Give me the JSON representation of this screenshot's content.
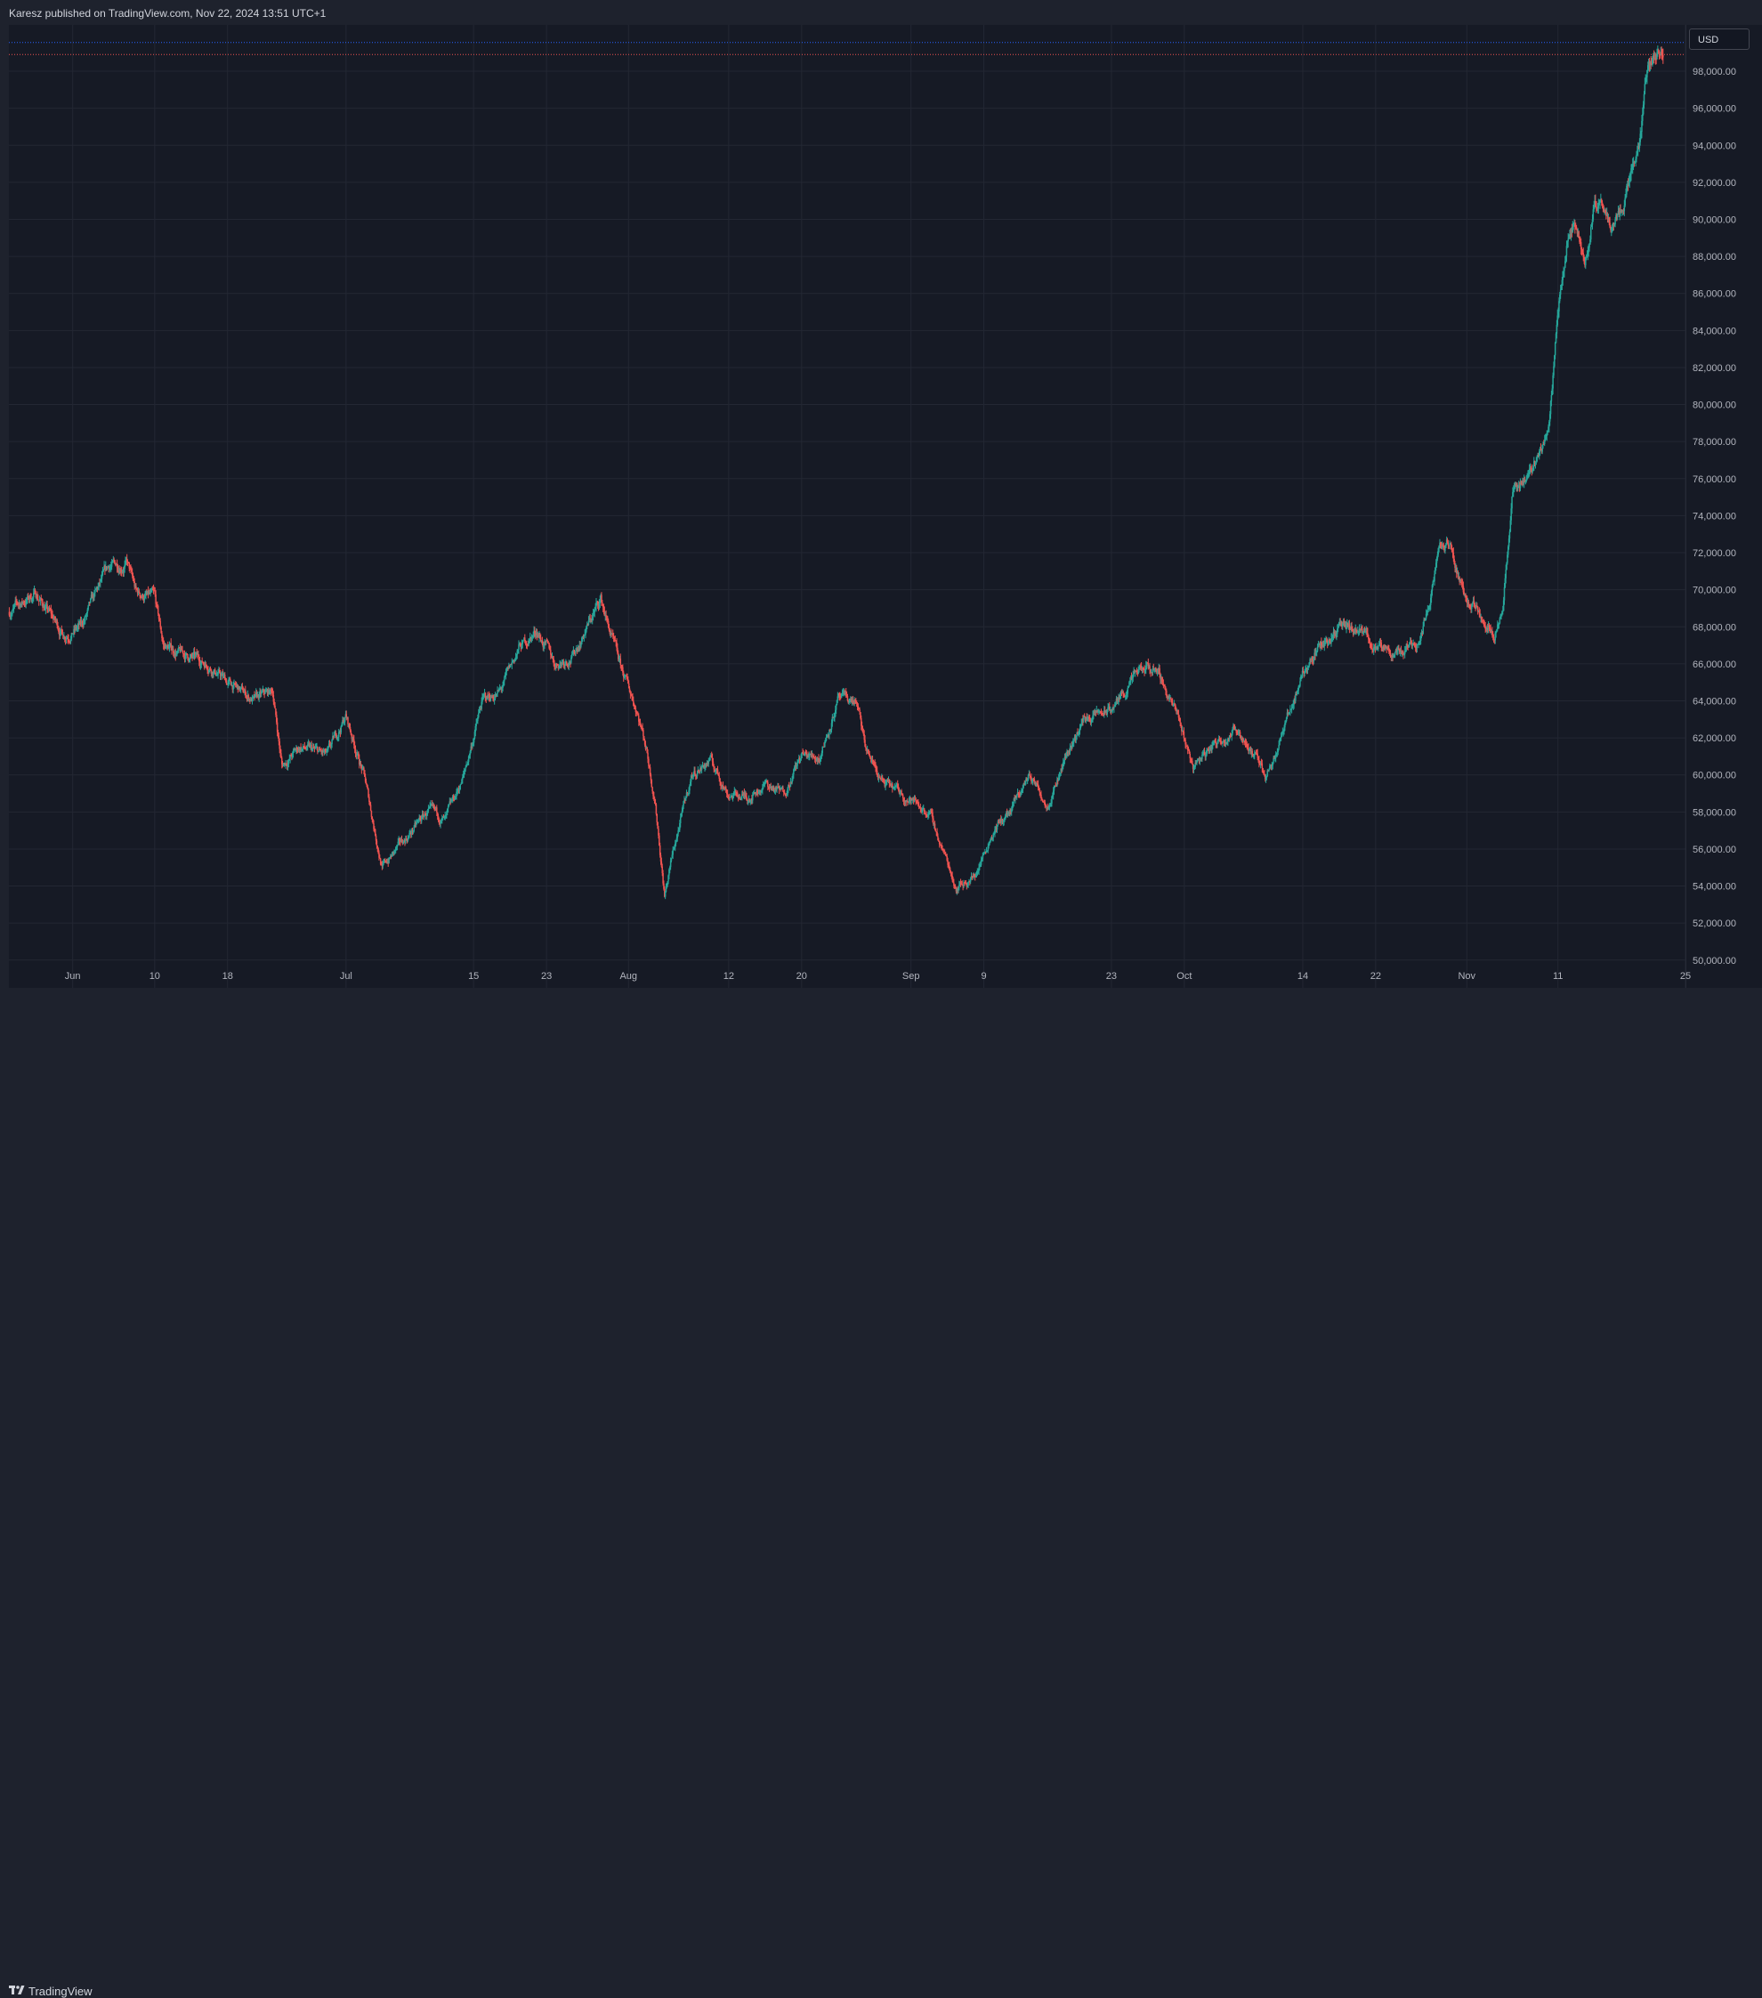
{
  "header": {
    "publisher_text": "Karesz published on TradingView.com, Nov 22, 2024 13:51 UTC+1"
  },
  "price_axis": {
    "currency_badge": "USD"
  },
  "footer": {
    "brand": "TradingView",
    "logo_icon": "tradingview-logo-icon"
  },
  "colors": {
    "background": "#161a25",
    "grid": "#232733",
    "up_candle": "#26a69a",
    "down_candle": "#ef5350",
    "marker_line_blue": "#2962ff",
    "marker_line_red": "#ef5350"
  },
  "chart_data": {
    "type": "candlestick",
    "title": "",
    "xlabel": "",
    "ylabel": "",
    "ylim": [
      48500,
      100500
    ],
    "grid": true,
    "y_ticks": [
      "50,000.00",
      "52,000.00",
      "54,000.00",
      "56,000.00",
      "58,000.00",
      "60,000.00",
      "62,000.00",
      "64,000.00",
      "66,000.00",
      "68,000.00",
      "70,000.00",
      "72,000.00",
      "74,000.00",
      "76,000.00",
      "78,000.00",
      "80,000.00",
      "82,000.00",
      "84,000.00",
      "86,000.00",
      "88,000.00",
      "90,000.00",
      "92,000.00",
      "94,000.00",
      "96,000.00",
      "98,000.00"
    ],
    "x_ticks": [
      {
        "label": "Jun",
        "date": "2024-06-01"
      },
      {
        "label": "10",
        "date": "2024-06-10"
      },
      {
        "label": "18",
        "date": "2024-06-18"
      },
      {
        "label": "Jul",
        "date": "2024-07-01"
      },
      {
        "label": "15",
        "date": "2024-07-15"
      },
      {
        "label": "23",
        "date": "2024-07-23"
      },
      {
        "label": "Aug",
        "date": "2024-08-01"
      },
      {
        "label": "12",
        "date": "2024-08-12"
      },
      {
        "label": "20",
        "date": "2024-08-20"
      },
      {
        "label": "Sep",
        "date": "2024-09-01"
      },
      {
        "label": "9",
        "date": "2024-09-09"
      },
      {
        "label": "23",
        "date": "2024-09-23"
      },
      {
        "label": "Oct",
        "date": "2024-10-01"
      },
      {
        "label": "14",
        "date": "2024-10-14"
      },
      {
        "label": "22",
        "date": "2024-10-22"
      },
      {
        "label": "Nov",
        "date": "2024-11-01"
      },
      {
        "label": "11",
        "date": "2024-11-11"
      },
      {
        "label": "25",
        "date": "2024-11-25"
      }
    ],
    "x_range": [
      "2024-05-25",
      "2024-11-25"
    ],
    "price_path": [
      [
        "2024-05-25",
        68800
      ],
      [
        "2024-05-28",
        69800
      ],
      [
        "2024-05-31",
        67600
      ],
      [
        "2024-06-02",
        68000
      ],
      [
        "2024-06-05",
        71200
      ],
      [
        "2024-06-07",
        71500
      ],
      [
        "2024-06-08",
        69800
      ],
      [
        "2024-06-10",
        69500
      ],
      [
        "2024-06-11",
        67000
      ],
      [
        "2024-06-13",
        66500
      ],
      [
        "2024-06-16",
        66000
      ],
      [
        "2024-06-18",
        65000
      ],
      [
        "2024-06-21",
        64000
      ],
      [
        "2024-06-23",
        64500
      ],
      [
        "2024-06-24",
        60500
      ],
      [
        "2024-06-26",
        61500
      ],
      [
        "2024-06-29",
        61000
      ],
      [
        "2024-07-01",
        63200
      ],
      [
        "2024-07-03",
        60000
      ],
      [
        "2024-07-05",
        55000
      ],
      [
        "2024-07-08",
        56800
      ],
      [
        "2024-07-10",
        58000
      ],
      [
        "2024-07-12",
        57500
      ],
      [
        "2024-07-14",
        60000
      ],
      [
        "2024-07-16",
        64000
      ],
      [
        "2024-07-18",
        64500
      ],
      [
        "2024-07-20",
        66800
      ],
      [
        "2024-07-22",
        67800
      ],
      [
        "2024-07-24",
        66000
      ],
      [
        "2024-07-26",
        66500
      ],
      [
        "2024-07-28",
        68500
      ],
      [
        "2024-07-29",
        69500
      ],
      [
        "2024-07-31",
        66000
      ],
      [
        "2024-08-02",
        63500
      ],
      [
        "2024-08-03",
        61500
      ],
      [
        "2024-08-04",
        58500
      ],
      [
        "2024-08-05",
        53500
      ],
      [
        "2024-08-06",
        56000
      ],
      [
        "2024-08-08",
        60000
      ],
      [
        "2024-08-10",
        60800
      ],
      [
        "2024-08-12",
        59000
      ],
      [
        "2024-08-14",
        58800
      ],
      [
        "2024-08-16",
        59500
      ],
      [
        "2024-08-18",
        59000
      ],
      [
        "2024-08-20",
        61000
      ],
      [
        "2024-08-22",
        61000
      ],
      [
        "2024-08-24",
        64000
      ],
      [
        "2024-08-26",
        64000
      ],
      [
        "2024-08-27",
        61500
      ],
      [
        "2024-08-29",
        59500
      ],
      [
        "2024-08-31",
        59000
      ],
      [
        "2024-09-03",
        58000
      ],
      [
        "2024-09-06",
        54000
      ],
      [
        "2024-09-08",
        54500
      ],
      [
        "2024-09-10",
        57000
      ],
      [
        "2024-09-12",
        58000
      ],
      [
        "2024-09-14",
        60000
      ],
      [
        "2024-09-16",
        58500
      ],
      [
        "2024-09-18",
        61000
      ],
      [
        "2024-09-20",
        63000
      ],
      [
        "2024-09-23",
        63500
      ],
      [
        "2024-09-26",
        65500
      ],
      [
        "2024-09-28",
        65800
      ],
      [
        "2024-09-30",
        63500
      ],
      [
        "2024-10-02",
        60500
      ],
      [
        "2024-10-05",
        62000
      ],
      [
        "2024-10-07",
        62500
      ],
      [
        "2024-10-09",
        60800
      ],
      [
        "2024-10-10",
        60000
      ],
      [
        "2024-10-12",
        62500
      ],
      [
        "2024-10-14",
        65500
      ],
      [
        "2024-10-16",
        67000
      ],
      [
        "2024-10-18",
        68000
      ],
      [
        "2024-10-21",
        67500
      ],
      [
        "2024-10-23",
        66500
      ],
      [
        "2024-10-25",
        66800
      ],
      [
        "2024-10-27",
        67500
      ],
      [
        "2024-10-29",
        72000
      ],
      [
        "2024-10-30",
        72500
      ],
      [
        "2024-11-01",
        69500
      ],
      [
        "2024-11-03",
        68500
      ],
      [
        "2024-11-04",
        67800
      ],
      [
        "2024-11-05",
        69000
      ],
      [
        "2024-11-06",
        75000
      ],
      [
        "2024-11-08",
        76500
      ],
      [
        "2024-11-10",
        78500
      ],
      [
        "2024-11-11",
        85000
      ],
      [
        "2024-11-12",
        88500
      ],
      [
        "2024-11-13",
        90000
      ],
      [
        "2024-11-14",
        87500
      ],
      [
        "2024-11-15",
        91000
      ],
      [
        "2024-11-16",
        90500
      ],
      [
        "2024-11-17",
        89800
      ],
      [
        "2024-11-18",
        90500
      ],
      [
        "2024-11-19",
        92500
      ],
      [
        "2024-11-20",
        94500
      ],
      [
        "2024-11-21",
        98500
      ],
      [
        "2024-11-22",
        98900
      ]
    ],
    "marker_lines": [
      {
        "price": 99550,
        "color": "#2962ff"
      },
      {
        "price": 98900,
        "color": "#ef5350"
      }
    ]
  }
}
